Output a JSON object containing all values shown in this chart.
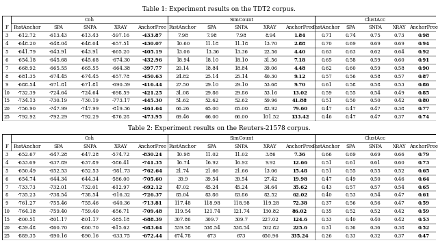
{
  "table1_title": "Table 1: Experiment results on the TDT2 corpus.",
  "table2_title": "Table 2: Experiment results on the Reuters-21578 corpus.",
  "col_headers_row": [
    "F",
    "FastAnchor",
    "SPA",
    "SNPA",
    "XRAY",
    "AnchorFree",
    "FastAnchor",
    "SPA",
    "SNPA",
    "XRAY",
    "AnchorFree",
    "FastAnchor",
    "SPA",
    "SNPA",
    "XRAY",
    "AnchorFree"
  ],
  "table1_rows": [
    [
      "3",
      "-612.72",
      "-613.43",
      "-613.43",
      "-597.16",
      "-433.87",
      "7.98",
      "7.98",
      "7.98",
      "8.94",
      "1.84",
      "0.71",
      "0.74",
      "0.75",
      "0.73",
      "0.98"
    ],
    [
      "4",
      "-648.20",
      "-648.04",
      "-648.04",
      "-657.51",
      "-430.07",
      "10.60",
      "11.18",
      "11.18",
      "13.70",
      "2.88",
      "0.70",
      "0.69",
      "0.69",
      "0.69",
      "0.94"
    ],
    [
      "5",
      "-641.79",
      "-643.91",
      "-643.91",
      "-665.20",
      "-405.19",
      "13.06",
      "13.36",
      "13.36",
      "22.56",
      "4.40",
      "0.63",
      "0.63",
      "0.62",
      "0.64",
      "0.92"
    ],
    [
      "6",
      "-654.18",
      "-645.68",
      "-645.68",
      "-674.30",
      "-432.96",
      "18.94",
      "18.10",
      "18.10",
      "31.56",
      "7.18",
      "0.65",
      "0.58",
      "0.59",
      "0.60",
      "0.91"
    ],
    [
      "7",
      "-668.92",
      "-665.55",
      "-665.55",
      "-664.38",
      "-397.77",
      "20.14",
      "18.84",
      "18.84",
      "39.06",
      "4.48",
      "0.62",
      "0.60",
      "0.59",
      "0.58",
      "0.90"
    ],
    [
      "8",
      "-681.35",
      "-674.45",
      "-674.45",
      "-657.78",
      "-450.63",
      "24.82",
      "25.14",
      "25.14",
      "40.30",
      "9.12",
      "0.57",
      "0.56",
      "0.58",
      "0.57",
      "0.87"
    ],
    [
      "9",
      "-688.54",
      "-671.81",
      "-671.81",
      "-690.39",
      "-416.44",
      "27.50",
      "29.10",
      "29.10",
      "53.68",
      "9.70",
      "0.61",
      "0.58",
      "0.58",
      "0.53",
      "0.86"
    ],
    [
      "10",
      "-732.39",
      "-724.64",
      "-724.64",
      "-698.59",
      "-421.25",
      "31.08",
      "29.86",
      "29.86",
      "53.16",
      "13.02",
      "0.59",
      "0.55",
      "0.54",
      "0.49",
      "0.85"
    ],
    [
      "15",
      "-734.13",
      "-730.19",
      "-730.19",
      "-773.17",
      "-445.30",
      "51.62",
      "52.62",
      "52.62",
      "59.96",
      "41.88",
      "0.51",
      "0.50",
      "0.50",
      "0.42",
      "0.80"
    ],
    [
      "20",
      "-756.90",
      "-747.99",
      "-747.99",
      "-819.36",
      "-461.64",
      "66.26",
      "65.00",
      "65.00",
      "82.92",
      "79.60",
      "0.47",
      "0.47",
      "0.47",
      "0.38",
      "0.77"
    ],
    [
      "25",
      "-792.92",
      "-792.29",
      "-792.29",
      "-876.28",
      "-473.95",
      "69.46",
      "66.00",
      "66.00",
      "101.52",
      "133.42",
      "0.46",
      "0.47",
      "0.47",
      "0.37",
      "0.74"
    ]
  ],
  "table2_rows": [
    [
      "3",
      "-652.67",
      "-647.28",
      "-647.28",
      "-574.72",
      "-830.24",
      "10.98",
      "11.02",
      "11.02",
      "3.86",
      "7.36",
      "0.66",
      "0.69",
      "0.69",
      "0.66",
      "0.79"
    ],
    [
      "4",
      "-633.69",
      "-637.89",
      "-637.89",
      "-586.41",
      "-741.35",
      "16.74",
      "16.92",
      "16.92",
      "9.92",
      "12.66",
      "0.51",
      "0.61",
      "0.61",
      "0.60",
      "0.73"
    ],
    [
      "5",
      "-650.49",
      "-652.53",
      "-652.53",
      "-581.73",
      "-762.64",
      "21.74",
      "21.66",
      "21.66",
      "13.06",
      "15.48",
      "0.51",
      "0.55",
      "0.55",
      "0.52",
      "0.65"
    ],
    [
      "6",
      "-654.74",
      "-644.34",
      "-644.34",
      "-586.00",
      "-705.60",
      "39.9",
      "39.54",
      "39.54",
      "27.42",
      "19.98",
      "0.47",
      "0.49",
      "0.50",
      "0.46",
      "0.64"
    ],
    [
      "7",
      "-733.73",
      "-732.01",
      "-732.01",
      "-612.97",
      "-692.12",
      "47.02",
      "45.24",
      "45.24",
      "34.64",
      "35.62",
      "0.43",
      "0.57",
      "0.57",
      "0.54",
      "0.65"
    ],
    [
      "8",
      "-735.23",
      "-738.54",
      "-738.54",
      "-616.32",
      "-726.37",
      "85.04",
      "83.86",
      "83.86",
      "82.52",
      "62.02",
      "0.40",
      "0.53",
      "0.54",
      "0.47",
      "0.61"
    ],
    [
      "9",
      "-761.27",
      "-755.46",
      "-755.46",
      "-640.36",
      "-713.81",
      "117.48",
      "118.98",
      "118.98",
      "119.28",
      "72.38",
      "0.37",
      "0.56",
      "0.56",
      "0.47",
      "0.59"
    ],
    [
      "10",
      "-764.18",
      "-759.40",
      "-759.40",
      "-656.71",
      "-709.48",
      "119.54",
      "121.74",
      "121.74",
      "130.82",
      "86.02",
      "0.35",
      "0.52",
      "0.52",
      "0.42",
      "0.59"
    ],
    [
      "15",
      "-800.51",
      "-801.17",
      "-801.17",
      "-585.18",
      "-688.39",
      "307.86",
      "309.7",
      "309.7",
      "227.02",
      "124.6",
      "0.33",
      "0.40",
      "0.40",
      "0.42",
      "0.53"
    ],
    [
      "20",
      "-839.48",
      "-860.70",
      "-860.70",
      "-615.62",
      "-683.64",
      "539.58",
      "538.54",
      "538.54",
      "502.82",
      "225.6",
      "0.31",
      "0.36",
      "0.36",
      "0.38",
      "0.52"
    ],
    [
      "25",
      "-889.35",
      "-890.16",
      "-890.16",
      "-633.75",
      "-672.44",
      "674.78",
      "673",
      "673",
      "650.96",
      "335.24",
      "0.26",
      "0.33",
      "0.32",
      "0.37",
      "0.47"
    ]
  ],
  "bold_col_indices": [
    5,
    10,
    15
  ],
  "fontsize": 5.0,
  "title_fontsize": 6.5,
  "header_fontsize": 5.0
}
